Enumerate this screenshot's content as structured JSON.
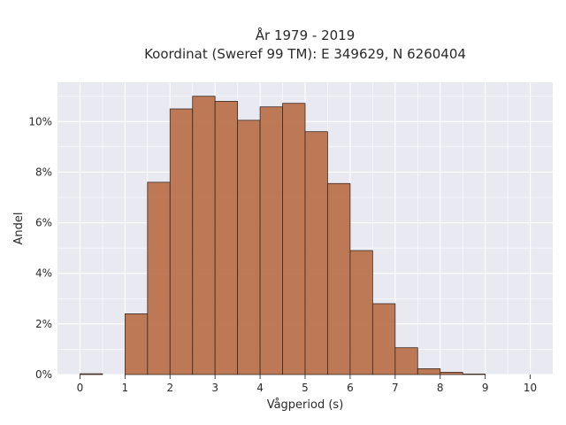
{
  "chart_data": {
    "type": "bar",
    "title_line1": "År 1979 - 2019",
    "title_line2": "Koordinat (Sweref 99 TM): E 349629, N 6260404",
    "xlabel": "Vågperiod (s)",
    "ylabel": "Andel",
    "bin_width": 0.5,
    "bins": [
      0,
      0.5,
      1,
      1.5,
      2,
      2.5,
      3,
      3.5,
      4,
      4.5,
      5,
      5.5,
      6,
      6.5,
      7,
      7.5,
      8,
      8.5,
      9,
      9.5
    ],
    "values": [
      0.0003,
      0.0,
      0.024,
      0.076,
      0.105,
      0.11,
      0.108,
      0.1005,
      0.1058,
      0.1072,
      0.096,
      0.0755,
      0.049,
      0.028,
      0.0106,
      0.0023,
      0.0009,
      0.0002,
      0.0,
      0.0
    ],
    "xlim": [
      -0.5,
      10.5
    ],
    "ylim": [
      0,
      0.1155
    ],
    "xticks": [
      "0",
      "1",
      "2",
      "3",
      "4",
      "5",
      "6",
      "7",
      "8",
      "9",
      "10"
    ],
    "yticks": [
      "0%",
      "2%",
      "4%",
      "6%",
      "8%",
      "10%"
    ],
    "grid": true,
    "colors": {
      "bar_fill": "#b86f49",
      "bar_edge": "#3a2a22",
      "plot_bg": "#e9e9f1",
      "grid": "#ffffff"
    }
  }
}
